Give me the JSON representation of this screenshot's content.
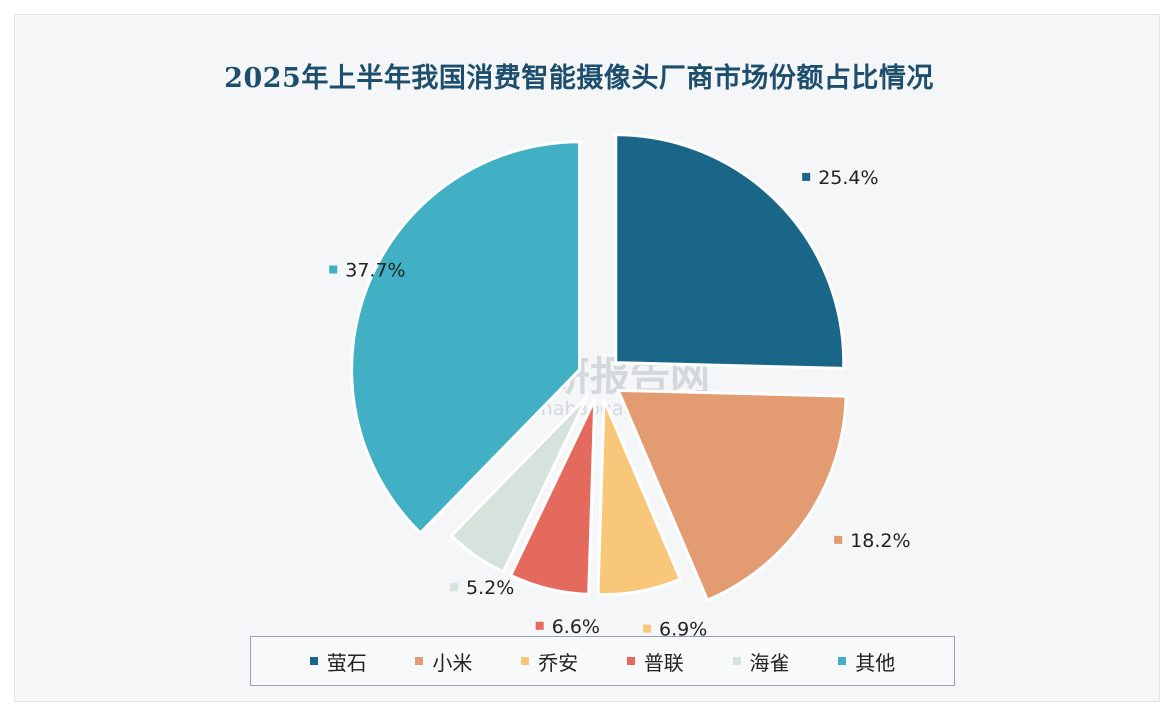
{
  "title": "2025年上半年我国消费智能摄像头厂商市场份额占比情况",
  "watermark": {
    "name": "观研报告网",
    "url": "chinabaogao.com"
  },
  "chart_data": {
    "type": "pie",
    "title": "2025年上半年我国消费智能摄像头厂商市场份额占比情况",
    "legend_position": "bottom",
    "series": [
      {
        "name": "萤石",
        "value": 25.4,
        "label": "25.4%",
        "color": "#1a6688"
      },
      {
        "name": "小米",
        "value": 18.2,
        "label": "18.2%",
        "color": "#e39b72"
      },
      {
        "name": "乔安",
        "value": 6.9,
        "label": "6.9%",
        "color": "#f9c77a"
      },
      {
        "name": "普联",
        "value": 6.6,
        "label": "6.6%",
        "color": "#e36a5c"
      },
      {
        "name": "海雀",
        "value": 5.2,
        "label": "5.2%",
        "color": "#d6e2dc"
      },
      {
        "name": "其他",
        "value": 37.7,
        "label": "37.7%",
        "color": "#41afc4"
      }
    ]
  }
}
